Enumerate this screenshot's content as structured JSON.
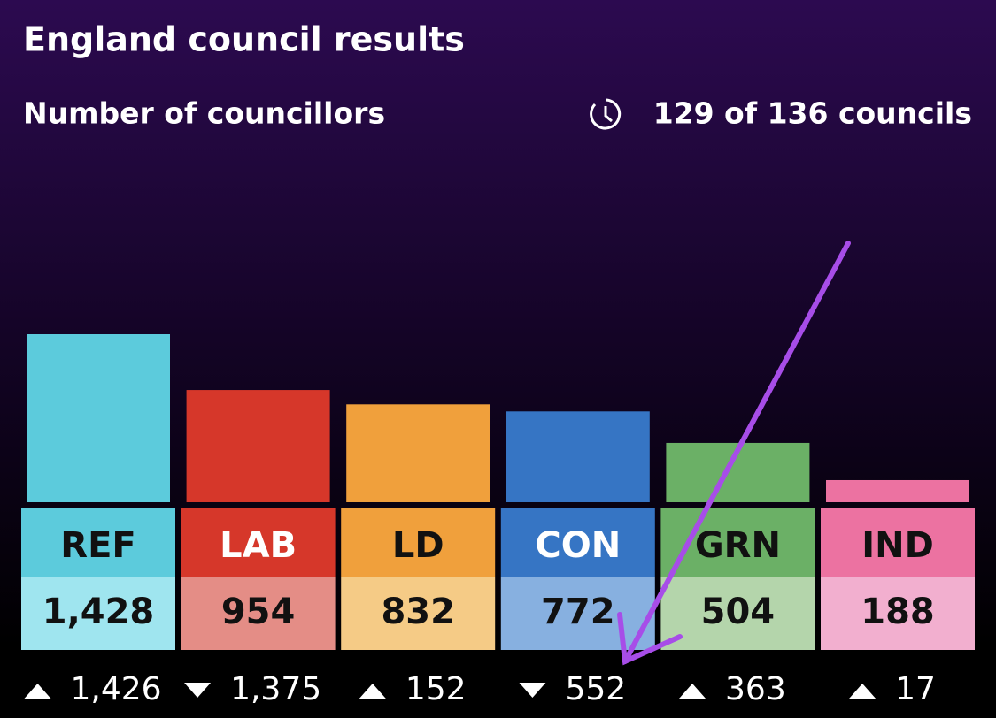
{
  "chart_data": {
    "type": "bar",
    "title": "England council results",
    "subtitle": "Number of councillors",
    "status": "129 of 136 councils",
    "categories": [
      "REF",
      "LAB",
      "LD",
      "CON",
      "GRN",
      "IND"
    ],
    "values": [
      1428,
      954,
      832,
      772,
      504,
      188
    ],
    "value_labels": [
      "1,428",
      "954",
      "832",
      "772",
      "504",
      "188"
    ],
    "colors": [
      "#5ccbdc",
      "#d6372a",
      "#f0a03c",
      "#3675c4",
      "#6bb066",
      "#ec72a1"
    ],
    "light_colors": [
      "#9fe5ef",
      "#e48d86",
      "#f5cb86",
      "#87b0e0",
      "#b4d5ab",
      "#f2afcf"
    ],
    "text_colors": [
      "#111111",
      "#ffffff",
      "#111111",
      "#ffffff",
      "#111111",
      "#111111"
    ],
    "changes": [
      1426,
      -1375,
      152,
      -552,
      363,
      17
    ],
    "change_labels": [
      "1,426",
      "1,375",
      "152",
      "552",
      "363",
      "17"
    ]
  }
}
